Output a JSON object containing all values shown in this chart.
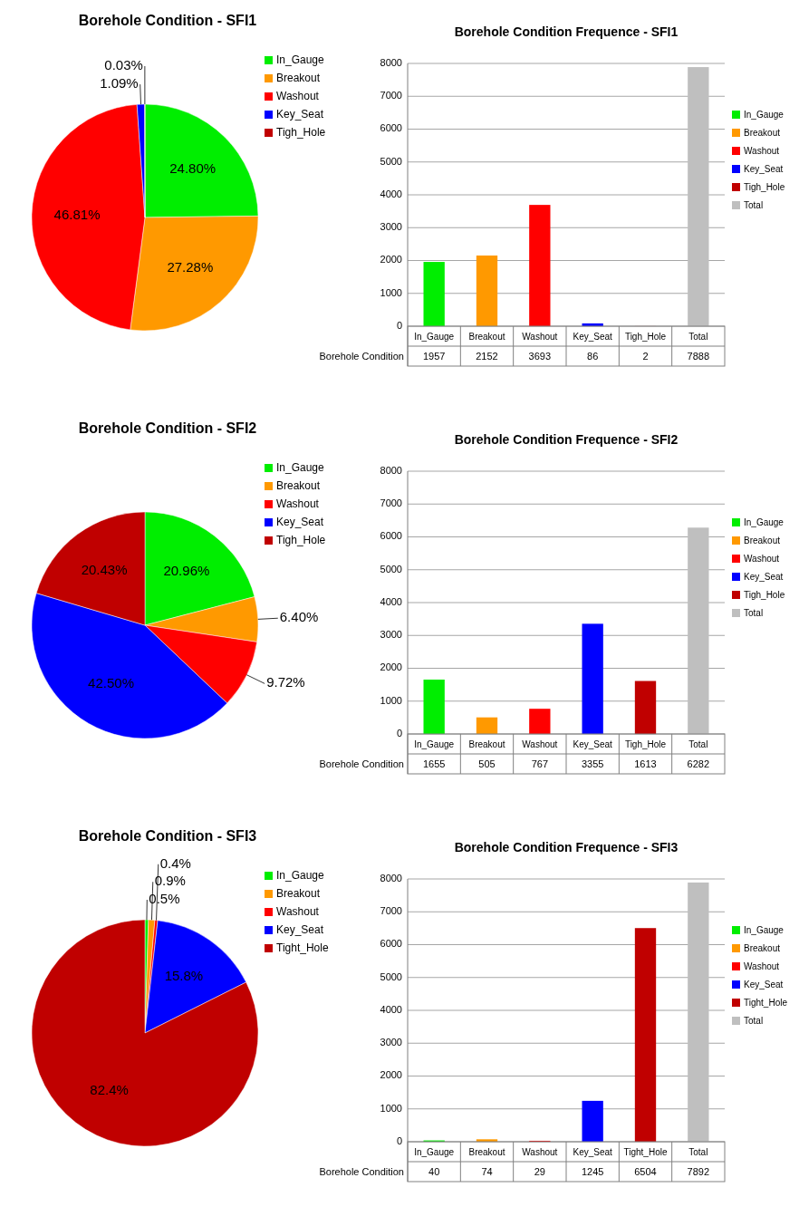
{
  "chart_data": [
    {
      "type": "pie",
      "title": "Borehole Condition - SFI1",
      "categories": [
        "In_Gauge",
        "Breakout",
        "Washout",
        "Key_Seat",
        "Tigh_Hole"
      ],
      "values": [
        24.8,
        27.28,
        46.81,
        1.09,
        0.03
      ],
      "colors": [
        "#00ee00",
        "#ff9900",
        "#ff0000",
        "#0000ff",
        "#c00000"
      ],
      "value_labels": [
        "24.80%",
        "27.28%",
        "46.81%",
        "1.09%",
        "0.03%"
      ],
      "legend": "right"
    },
    {
      "type": "bar",
      "title": "Borehole Condition Frequence - SFI1",
      "xlabel": "Borehole Condition",
      "categories": [
        "In_Gauge",
        "Breakout",
        "Washout",
        "Key_Seat",
        "Tigh_Hole",
        "Total"
      ],
      "stacked": true,
      "series": [
        {
          "name": "In_Gauge",
          "color": "#00ee00",
          "values": [
            1957,
            null,
            null,
            null,
            null,
            null
          ]
        },
        {
          "name": "Breakout",
          "color": "#ff9900",
          "values": [
            null,
            2152,
            null,
            null,
            null,
            null
          ]
        },
        {
          "name": "Washout",
          "color": "#ff0000",
          "values": [
            null,
            null,
            3693,
            null,
            null,
            null
          ]
        },
        {
          "name": "Key_Seat",
          "color": "#0000ff",
          "values": [
            null,
            null,
            null,
            86,
            null,
            null
          ]
        },
        {
          "name": "Tigh_Hole",
          "color": "#c00000",
          "values": [
            null,
            null,
            null,
            null,
            2,
            null
          ]
        },
        {
          "name": "Total",
          "color": "#bfbfbf",
          "values": [
            null,
            null,
            null,
            null,
            null,
            7888
          ]
        }
      ],
      "ylim": [
        0,
        8000
      ],
      "yticks": [
        0,
        1000,
        2000,
        3000,
        4000,
        5000,
        6000,
        7000,
        8000
      ],
      "grid": "y",
      "legend": "right",
      "data_labels": true
    },
    {
      "type": "pie",
      "title": "Borehole Condition - SFI2",
      "categories": [
        "In_Gauge",
        "Breakout",
        "Washout",
        "Key_Seat",
        "Tigh_Hole"
      ],
      "values": [
        20.96,
        6.4,
        9.72,
        42.5,
        20.43
      ],
      "colors": [
        "#00ee00",
        "#ff9900",
        "#ff0000",
        "#0000ff",
        "#c00000"
      ],
      "value_labels": [
        "20.96%",
        "6.40%",
        "9.72%",
        "42.50%",
        "20.43%"
      ],
      "legend": "right"
    },
    {
      "type": "bar",
      "title": "Borehole Condition Frequence - SFI2",
      "xlabel": "Borehole Condition",
      "categories": [
        "In_Gauge",
        "Breakout",
        "Washout",
        "Key_Seat",
        "Tigh_Hole",
        "Total"
      ],
      "stacked": true,
      "series": [
        {
          "name": "In_Gauge",
          "color": "#00ee00",
          "values": [
            1655,
            null,
            null,
            null,
            null,
            null
          ]
        },
        {
          "name": "Breakout",
          "color": "#ff9900",
          "values": [
            null,
            505,
            null,
            null,
            null,
            null
          ]
        },
        {
          "name": "Washout",
          "color": "#ff0000",
          "values": [
            null,
            null,
            767,
            null,
            null,
            null
          ]
        },
        {
          "name": "Key_Seat",
          "color": "#0000ff",
          "values": [
            null,
            null,
            null,
            3355,
            null,
            null
          ]
        },
        {
          "name": "Tigh_Hole",
          "color": "#c00000",
          "values": [
            null,
            null,
            null,
            null,
            1613,
            null
          ]
        },
        {
          "name": "Total",
          "color": "#bfbfbf",
          "values": [
            null,
            null,
            null,
            null,
            null,
            6282
          ]
        }
      ],
      "ylim": [
        0,
        8000
      ],
      "yticks": [
        0,
        1000,
        2000,
        3000,
        4000,
        5000,
        6000,
        7000,
        8000
      ],
      "grid": "y",
      "legend": "right",
      "data_labels": true
    },
    {
      "type": "pie",
      "title": "Borehole Condition - SFI3",
      "categories": [
        "In_Gauge",
        "Breakout",
        "Washout",
        "Key_Seat",
        "Tight_Hole"
      ],
      "values": [
        0.5,
        0.9,
        0.4,
        15.8,
        82.4
      ],
      "colors": [
        "#00ee00",
        "#ff9900",
        "#ff0000",
        "#0000ff",
        "#c00000"
      ],
      "value_labels": [
        "0.5%",
        "0.9%",
        "0.4%",
        "15.8%",
        "82.4%"
      ],
      "legend": "right"
    },
    {
      "type": "bar",
      "title": "Borehole Condition Frequence - SFI3",
      "xlabel": "Borehole Condition",
      "categories": [
        "In_Gauge",
        "Breakout",
        "Washout",
        "Key_Seat",
        "Tight_Hole",
        "Total"
      ],
      "stacked": true,
      "series": [
        {
          "name": "In_Gauge",
          "color": "#00ee00",
          "values": [
            40,
            null,
            null,
            null,
            null,
            null
          ]
        },
        {
          "name": "Breakout",
          "color": "#ff9900",
          "values": [
            null,
            74,
            null,
            null,
            null,
            null
          ]
        },
        {
          "name": "Washout",
          "color": "#ff0000",
          "values": [
            null,
            null,
            29,
            null,
            null,
            null
          ]
        },
        {
          "name": "Key_Seat",
          "color": "#0000ff",
          "values": [
            null,
            null,
            null,
            1245,
            null,
            null
          ]
        },
        {
          "name": "Tight_Hole",
          "color": "#c00000",
          "values": [
            null,
            null,
            null,
            null,
            6504,
            null
          ]
        },
        {
          "name": "Total",
          "color": "#bfbfbf",
          "values": [
            null,
            null,
            null,
            null,
            null,
            7892
          ]
        }
      ],
      "ylim": [
        0,
        8000
      ],
      "yticks": [
        0,
        1000,
        2000,
        3000,
        4000,
        5000,
        6000,
        7000,
        8000
      ],
      "grid": "y",
      "legend": "right",
      "data_labels": true
    }
  ]
}
